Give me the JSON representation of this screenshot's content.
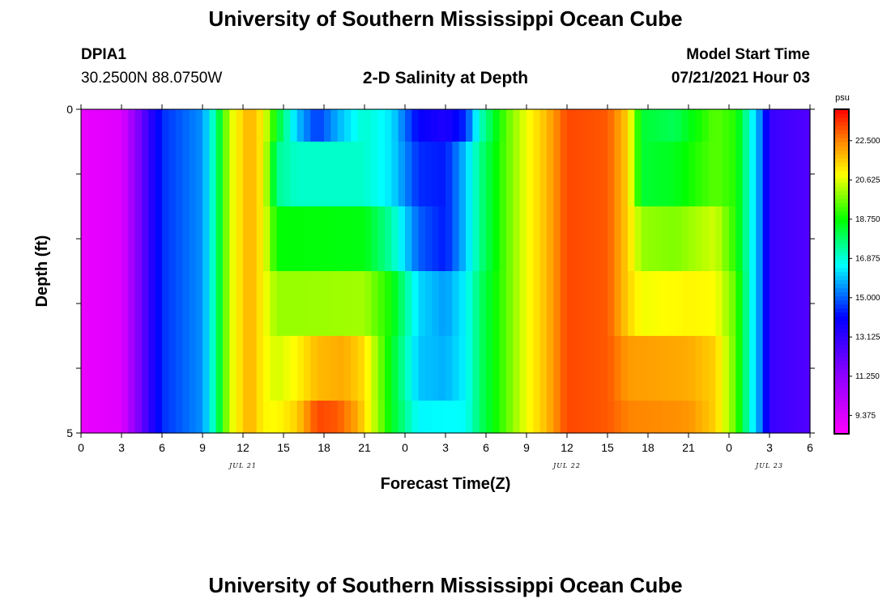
{
  "header": {
    "title_top": "University of Southern Mississippi Ocean Cube",
    "title_bottom": "University of Southern Mississippi Ocean Cube",
    "station_id": "DPIA1",
    "station_coords": "30.2500N  88.0750W",
    "plot_title": "2-D Salinity at Depth",
    "model_start_label": "Model Start Time",
    "model_start_value": "07/21/2021 Hour 03"
  },
  "chart_data": {
    "type": "heatmap",
    "title": "2-D Salinity at Depth",
    "xlabel": "Forecast Time(Z)",
    "ylabel": "Depth (ft)",
    "x_range_hours": [
      0,
      54
    ],
    "y_range_ft": [
      0,
      5
    ],
    "y_ticks": [
      {
        "value": 0,
        "label": "0"
      },
      {
        "value": 5,
        "label": "5"
      }
    ],
    "x_tick_labels": [
      "0",
      "3",
      "6",
      "9",
      "12",
      "15",
      "18",
      "21",
      "0",
      "3",
      "6",
      "9",
      "12",
      "15",
      "18",
      "21",
      "0",
      "3",
      "6"
    ],
    "date_labels": [
      {
        "label": "JUL 21",
        "hour": 12
      },
      {
        "label": "JUL 22",
        "hour": 36
      },
      {
        "label": "JUL 23",
        "hour": 51
      }
    ],
    "colorbar": {
      "unit": "psu",
      "min": 8.5,
      "max": 24.0,
      "tick_values": [
        9.375,
        11.25,
        13.125,
        15.0,
        16.875,
        18.75,
        20.625,
        22.5
      ],
      "tick_labels": [
        "9.375",
        "11.250",
        "13.125",
        "15.000",
        "16.875",
        "18.750",
        "20.625",
        "22.500"
      ]
    },
    "layers": [
      {
        "depth_range_ft": [
          0,
          0.5
        ],
        "keys": [
          {
            "h": 0,
            "v": 9.0
          },
          {
            "h": 3,
            "v": 9.3
          },
          {
            "h": 5,
            "v": 13.0
          },
          {
            "h": 6,
            "v": 14.5
          },
          {
            "h": 9,
            "v": 15.5
          },
          {
            "h": 10,
            "v": 17.5
          },
          {
            "h": 11,
            "v": 20.5
          },
          {
            "h": 12.5,
            "v": 22.0
          },
          {
            "h": 13.5,
            "v": 21.0
          },
          {
            "h": 14.5,
            "v": 18.5
          },
          {
            "h": 16,
            "v": 16.0
          },
          {
            "h": 17.5,
            "v": 14.6
          },
          {
            "h": 19,
            "v": 15.8
          },
          {
            "h": 21,
            "v": 17.0
          },
          {
            "h": 23,
            "v": 16.3
          },
          {
            "h": 25,
            "v": 14.0
          },
          {
            "h": 27,
            "v": 13.5
          },
          {
            "h": 28.5,
            "v": 14.5
          },
          {
            "h": 29.5,
            "v": 17.0
          },
          {
            "h": 31.5,
            "v": 19.5
          },
          {
            "h": 33,
            "v": 20.8
          },
          {
            "h": 34.5,
            "v": 21.8
          },
          {
            "h": 36,
            "v": 23.2
          },
          {
            "h": 39,
            "v": 23.0
          },
          {
            "h": 40.5,
            "v": 21.5
          },
          {
            "h": 41.5,
            "v": 18.3
          },
          {
            "h": 44,
            "v": 18.0
          },
          {
            "h": 47,
            "v": 19.5
          },
          {
            "h": 48.5,
            "v": 19.0
          },
          {
            "h": 49.5,
            "v": 17.0
          },
          {
            "h": 50.5,
            "v": 15.0
          },
          {
            "h": 51,
            "v": 13.0
          },
          {
            "h": 54,
            "v": 12.5
          }
        ]
      },
      {
        "depth_range_ft": [
          0.5,
          1.5
        ],
        "keys": [
          {
            "h": 0,
            "v": 9.0
          },
          {
            "h": 3,
            "v": 9.3
          },
          {
            "h": 5,
            "v": 13.0
          },
          {
            "h": 6,
            "v": 14.5
          },
          {
            "h": 9,
            "v": 15.5
          },
          {
            "h": 10,
            "v": 17.5
          },
          {
            "h": 11,
            "v": 20.5
          },
          {
            "h": 12.5,
            "v": 22.0
          },
          {
            "h": 13.5,
            "v": 21.0
          },
          {
            "h": 14.5,
            "v": 17.5
          },
          {
            "h": 16,
            "v": 17.0
          },
          {
            "h": 21,
            "v": 17.0
          },
          {
            "h": 23,
            "v": 16.3
          },
          {
            "h": 25,
            "v": 14.5
          },
          {
            "h": 27,
            "v": 14.3
          },
          {
            "h": 28.5,
            "v": 16.0
          },
          {
            "h": 29.5,
            "v": 17.5
          },
          {
            "h": 31.5,
            "v": 19.5
          },
          {
            "h": 33,
            "v": 20.8
          },
          {
            "h": 34.5,
            "v": 21.8
          },
          {
            "h": 36,
            "v": 23.2
          },
          {
            "h": 39,
            "v": 23.0
          },
          {
            "h": 40.5,
            "v": 21.5
          },
          {
            "h": 41.5,
            "v": 18.3
          },
          {
            "h": 44,
            "v": 18.5
          },
          {
            "h": 47,
            "v": 19.5
          },
          {
            "h": 48.5,
            "v": 19.0
          },
          {
            "h": 49.5,
            "v": 17.0
          },
          {
            "h": 50.5,
            "v": 15.0
          },
          {
            "h": 51,
            "v": 13.0
          },
          {
            "h": 54,
            "v": 12.5
          }
        ]
      },
      {
        "depth_range_ft": [
          1.5,
          2.5
        ],
        "keys": [
          {
            "h": 0,
            "v": 9.0
          },
          {
            "h": 3,
            "v": 9.3
          },
          {
            "h": 5,
            "v": 13.0
          },
          {
            "h": 6,
            "v": 14.5
          },
          {
            "h": 9,
            "v": 15.5
          },
          {
            "h": 10,
            "v": 17.5
          },
          {
            "h": 11,
            "v": 20.5
          },
          {
            "h": 12.5,
            "v": 22.0
          },
          {
            "h": 13.5,
            "v": 21.0
          },
          {
            "h": 14.5,
            "v": 18.7
          },
          {
            "h": 21,
            "v": 18.6
          },
          {
            "h": 23,
            "v": 17.3
          },
          {
            "h": 25,
            "v": 15.0
          },
          {
            "h": 27,
            "v": 14.3
          },
          {
            "h": 28.5,
            "v": 16.0
          },
          {
            "h": 29.5,
            "v": 17.5
          },
          {
            "h": 31.5,
            "v": 19.5
          },
          {
            "h": 33,
            "v": 20.8
          },
          {
            "h": 34.5,
            "v": 21.8
          },
          {
            "h": 36,
            "v": 23.2
          },
          {
            "h": 39,
            "v": 23.0
          },
          {
            "h": 40.5,
            "v": 21.5
          },
          {
            "h": 41.5,
            "v": 20.0
          },
          {
            "h": 44,
            "v": 19.8
          },
          {
            "h": 47,
            "v": 20.5
          },
          {
            "h": 48.5,
            "v": 19.0
          },
          {
            "h": 49.5,
            "v": 17.0
          },
          {
            "h": 50.5,
            "v": 15.0
          },
          {
            "h": 51,
            "v": 13.0
          },
          {
            "h": 54,
            "v": 12.5
          }
        ]
      },
      {
        "depth_range_ft": [
          2.5,
          3.5
        ],
        "keys": [
          {
            "h": 0,
            "v": 9.0
          },
          {
            "h": 3,
            "v": 9.3
          },
          {
            "h": 5,
            "v": 13.0
          },
          {
            "h": 6,
            "v": 14.5
          },
          {
            "h": 9,
            "v": 15.5
          },
          {
            "h": 10,
            "v": 17.5
          },
          {
            "h": 11,
            "v": 20.5
          },
          {
            "h": 12.5,
            "v": 22.0
          },
          {
            "h": 13.5,
            "v": 21.0
          },
          {
            "h": 14.5,
            "v": 20.0
          },
          {
            "h": 21,
            "v": 20.1
          },
          {
            "h": 23,
            "v": 18.8
          },
          {
            "h": 25,
            "v": 16.2
          },
          {
            "h": 27,
            "v": 15.6
          },
          {
            "h": 28.5,
            "v": 16.5
          },
          {
            "h": 29.5,
            "v": 17.8
          },
          {
            "h": 31.5,
            "v": 19.5
          },
          {
            "h": 33,
            "v": 20.8
          },
          {
            "h": 34.5,
            "v": 21.8
          },
          {
            "h": 36,
            "v": 23.2
          },
          {
            "h": 39,
            "v": 23.0
          },
          {
            "h": 40.5,
            "v": 21.5
          },
          {
            "h": 41.5,
            "v": 20.8
          },
          {
            "h": 45,
            "v": 21.0
          },
          {
            "h": 47,
            "v": 20.9
          },
          {
            "h": 48.5,
            "v": 19.5
          },
          {
            "h": 49.5,
            "v": 17.0
          },
          {
            "h": 50.5,
            "v": 15.0
          },
          {
            "h": 51,
            "v": 13.0
          },
          {
            "h": 54,
            "v": 12.5
          }
        ]
      },
      {
        "depth_range_ft": [
          3.5,
          4.5
        ],
        "keys": [
          {
            "h": 0,
            "v": 9.0
          },
          {
            "h": 3,
            "v": 9.3
          },
          {
            "h": 5,
            "v": 13.0
          },
          {
            "h": 6,
            "v": 14.5
          },
          {
            "h": 9,
            "v": 15.5
          },
          {
            "h": 10,
            "v": 17.5
          },
          {
            "h": 11,
            "v": 20.5
          },
          {
            "h": 12.5,
            "v": 22.0
          },
          {
            "h": 13.5,
            "v": 21.0
          },
          {
            "h": 14.5,
            "v": 20.5
          },
          {
            "h": 16,
            "v": 21.0
          },
          {
            "h": 17.5,
            "v": 21.8
          },
          {
            "h": 19.5,
            "v": 22.0
          },
          {
            "h": 21,
            "v": 21.3
          },
          {
            "h": 23,
            "v": 18.5
          },
          {
            "h": 25,
            "v": 16.0
          },
          {
            "h": 27,
            "v": 15.8
          },
          {
            "h": 28.5,
            "v": 16.5
          },
          {
            "h": 29.5,
            "v": 17.8
          },
          {
            "h": 31.5,
            "v": 19.5
          },
          {
            "h": 33,
            "v": 20.8
          },
          {
            "h": 34.5,
            "v": 21.8
          },
          {
            "h": 36,
            "v": 23.2
          },
          {
            "h": 39,
            "v": 23.0
          },
          {
            "h": 40.5,
            "v": 22.2
          },
          {
            "h": 45,
            "v": 22.0
          },
          {
            "h": 47,
            "v": 21.5
          },
          {
            "h": 48.5,
            "v": 19.5
          },
          {
            "h": 49.5,
            "v": 17.0
          },
          {
            "h": 50.5,
            "v": 15.0
          },
          {
            "h": 51,
            "v": 13.0
          },
          {
            "h": 54,
            "v": 12.5
          }
        ]
      },
      {
        "depth_range_ft": [
          4.5,
          5
        ],
        "keys": [
          {
            "h": 0,
            "v": 9.0
          },
          {
            "h": 3,
            "v": 9.3
          },
          {
            "h": 5,
            "v": 13.0
          },
          {
            "h": 6,
            "v": 14.5
          },
          {
            "h": 9,
            "v": 15.5
          },
          {
            "h": 10,
            "v": 17.5
          },
          {
            "h": 11,
            "v": 20.5
          },
          {
            "h": 12.5,
            "v": 22.0
          },
          {
            "h": 13.5,
            "v": 21.0
          },
          {
            "h": 14.5,
            "v": 20.9
          },
          {
            "h": 16,
            "v": 21.5
          },
          {
            "h": 17.5,
            "v": 23.2
          },
          {
            "h": 19,
            "v": 23.0
          },
          {
            "h": 20.5,
            "v": 22.0
          },
          {
            "h": 22,
            "v": 20.0
          },
          {
            "h": 23,
            "v": 18.5
          },
          {
            "h": 25,
            "v": 16.5
          },
          {
            "h": 28.5,
            "v": 16.6
          },
          {
            "h": 29.5,
            "v": 17.8
          },
          {
            "h": 31.5,
            "v": 19.5
          },
          {
            "h": 33,
            "v": 20.8
          },
          {
            "h": 34.5,
            "v": 21.8
          },
          {
            "h": 36,
            "v": 23.2
          },
          {
            "h": 39,
            "v": 23.0
          },
          {
            "h": 40.5,
            "v": 22.5
          },
          {
            "h": 45,
            "v": 22.3
          },
          {
            "h": 47,
            "v": 21.5
          },
          {
            "h": 48.5,
            "v": 19.5
          },
          {
            "h": 49.5,
            "v": 17.0
          },
          {
            "h": 50.5,
            "v": 15.0
          },
          {
            "h": 51,
            "v": 13.0
          },
          {
            "h": 54,
            "v": 12.5
          }
        ]
      }
    ]
  }
}
